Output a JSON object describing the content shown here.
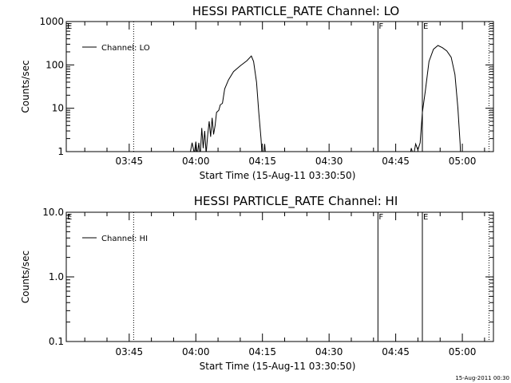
{
  "footer_timestamp": "15-Aug-2011 00:30",
  "chart_data": [
    {
      "type": "line",
      "title": "HESSI PARTICLE_RATE Channel: LO",
      "xlabel": "Start Time (15-Aug-11 03:30:50)",
      "ylabel": "Counts/sec",
      "y_scale": "log",
      "ylim": [
        1,
        1000
      ],
      "y_ticks": [
        {
          "v": 1,
          "label": "1"
        },
        {
          "v": 10,
          "label": "10"
        },
        {
          "v": 100,
          "label": "100"
        },
        {
          "v": 1000,
          "label": "1000"
        }
      ],
      "xlim": [
        "03:30:50",
        "05:07"
      ],
      "x_ticks": [
        "03:45",
        "04:00",
        "04:15",
        "04:30",
        "04:45",
        "05:00"
      ],
      "legend": {
        "entries": [
          "Channel: LO"
        ],
        "placement": "top-left"
      },
      "vertical_lines": [
        {
          "time": "03:46",
          "style": "dotted",
          "label": ""
        },
        {
          "time": "04:41",
          "style": "solid",
          "label": "F"
        },
        {
          "time": "04:51",
          "style": "solid",
          "label": "E"
        },
        {
          "time": "05:06",
          "style": "dotted",
          "label": ""
        }
      ],
      "corner_label": "E",
      "series": [
        {
          "name": "Channel: LO",
          "segments": [
            [
              [
                "03:58:30",
                0.7
              ],
              [
                "03:59:10",
                1.6
              ],
              [
                "03:59:40",
                0.9
              ],
              [
                "04:00:00",
                1.7
              ],
              [
                "04:00:20",
                0.8
              ],
              [
                "04:00:40",
                1.6
              ],
              [
                "04:01:00",
                0.8
              ],
              [
                "04:01:20",
                3.5
              ],
              [
                "04:01:40",
                1.2
              ],
              [
                "04:02:00",
                3.0
              ],
              [
                "04:02:20",
                0.9
              ],
              [
                "04:02:40",
                2.4
              ],
              [
                "04:03:00",
                5.0
              ],
              [
                "04:03:20",
                2.2
              ],
              [
                "04:03:40",
                6.0
              ],
              [
                "04:04:00",
                2.5
              ],
              [
                "04:04:20",
                4.0
              ],
              [
                "04:04:40",
                8.0
              ],
              [
                "04:05:10",
                9.0
              ],
              [
                "04:05:30",
                12
              ],
              [
                "04:06:00",
                13
              ],
              [
                "04:06:30",
                28
              ],
              [
                "04:07:20",
                45
              ],
              [
                "04:08:30",
                70
              ],
              [
                "04:10:00",
                95
              ],
              [
                "04:11:30",
                125
              ],
              [
                "04:12:30",
                160
              ],
              [
                "04:13:00",
                120
              ],
              [
                "04:13:40",
                40
              ],
              [
                "04:14:10",
                8
              ],
              [
                "04:14:40",
                2
              ],
              [
                "04:15:00",
                0.6
              ]
            ],
            [
              [
                "04:15:10",
                0.6
              ],
              [
                "04:15:30",
                1.5
              ],
              [
                "04:15:50",
                0.6
              ]
            ],
            [
              [
                "04:48:00",
                0.6
              ],
              [
                "04:48:30",
                1.2
              ],
              [
                "04:49:00",
                0.8
              ],
              [
                "04:49:30",
                1.5
              ],
              [
                "04:50:00",
                1.1
              ],
              [
                "04:50:30",
                1.6
              ],
              [
                "04:51:00",
                8
              ],
              [
                "04:51:40",
                25
              ],
              [
                "04:52:30",
                120
              ],
              [
                "04:53:30",
                230
              ],
              [
                "04:54:30",
                280
              ],
              [
                "04:55:30",
                250
              ],
              [
                "04:56:30",
                210
              ],
              [
                "04:57:30",
                150
              ],
              [
                "04:58:20",
                60
              ],
              [
                "04:59:00",
                10
              ],
              [
                "04:59:30",
                1.5
              ],
              [
                "04:59:40",
                0.6
              ]
            ]
          ]
        }
      ]
    },
    {
      "type": "line",
      "title": "HESSI PARTICLE_RATE Channel: HI",
      "xlabel": "Start Time (15-Aug-11 03:30:50)",
      "ylabel": "Counts/sec",
      "y_scale": "log",
      "ylim": [
        0.1,
        10
      ],
      "y_ticks": [
        {
          "v": 0.1,
          "label": "0.1"
        },
        {
          "v": 1,
          "label": "1.0"
        },
        {
          "v": 10,
          "label": "10.0"
        }
      ],
      "xlim": [
        "03:30:50",
        "05:07"
      ],
      "x_ticks": [
        "03:45",
        "04:00",
        "04:15",
        "04:30",
        "04:45",
        "05:00"
      ],
      "legend": {
        "entries": [
          "Channel: HI"
        ],
        "placement": "top-left"
      },
      "vertical_lines": [
        {
          "time": "03:46",
          "style": "dotted",
          "label": ""
        },
        {
          "time": "04:41",
          "style": "solid",
          "label": "F"
        },
        {
          "time": "04:51",
          "style": "solid",
          "label": "E"
        },
        {
          "time": "05:06",
          "style": "dotted",
          "label": ""
        }
      ],
      "corner_label": "E",
      "series": [
        {
          "name": "Channel: HI",
          "segments": []
        }
      ]
    }
  ]
}
